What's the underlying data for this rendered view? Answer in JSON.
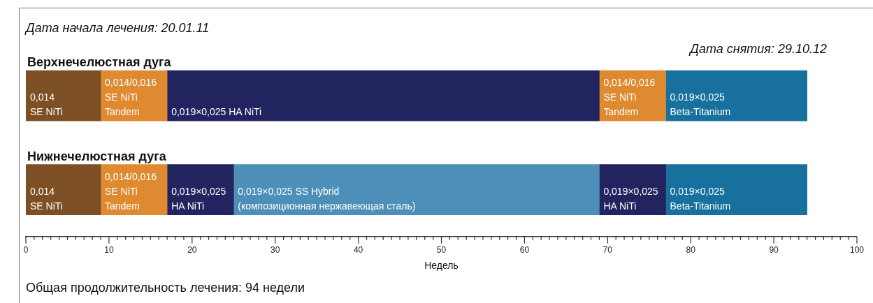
{
  "chart_data": {
    "type": "bar",
    "orientation": "horizontal",
    "xlabel": "Недель",
    "categories": [
      "Верхнечелюстная дуга",
      "Нижнечелюстная дуга"
    ],
    "annotations": [
      "Дата начала лечения:  20.01.11",
      "Дата снятия:  29.10.12",
      "Общая продолжительность лечения: 94 недели"
    ],
    "xlim": [
      0,
      100
    ],
    "xticks": [
      0,
      {
        "value": 1,
        "label": null
      },
      {
        "value": 2,
        "label": null
      },
      {
        "value": 3,
        "label": null
      },
      {
        "value": 4,
        "label": null
      },
      {
        "value": 5,
        "label": null
      },
      {
        "value": 6,
        "label": null
      },
      {
        "value": 7,
        "label": null
      },
      {
        "value": 8,
        "label": null
      },
      {
        "value": 9,
        "label": null
      },
      10,
      {
        "value": 11,
        "label": null
      },
      {
        "value": 12,
        "label": null
      },
      {
        "value": 13,
        "label": null
      },
      {
        "value": 14,
        "label": null
      },
      {
        "value": 15,
        "label": null
      },
      {
        "value": 16,
        "label": null
      },
      {
        "value": 17,
        "label": null
      },
      {
        "value": 18,
        "label": null
      },
      {
        "value": 19,
        "label": null
      },
      20,
      {
        "value": 21,
        "label": null
      },
      {
        "value": 22,
        "label": null
      },
      {
        "value": 23,
        "label": null
      },
      {
        "value": 24,
        "label": null
      },
      {
        "value": 25,
        "label": null
      },
      {
        "value": 26,
        "label": null
      },
      {
        "value": 27,
        "label": null
      },
      {
        "value": 28,
        "label": null
      },
      {
        "value": 29,
        "label": null
      },
      30,
      {
        "value": 31,
        "label": null
      },
      {
        "value": 32,
        "label": null
      },
      {
        "value": 33,
        "label": null
      },
      {
        "value": 34,
        "label": null
      },
      {
        "value": 35,
        "label": null
      },
      {
        "value": 36,
        "label": null
      },
      {
        "value": 37,
        "label": null
      },
      {
        "value": 38,
        "label": null
      },
      {
        "value": 39,
        "label": null
      },
      40,
      {
        "value": 41,
        "label": null
      },
      {
        "value": 42,
        "label": null
      },
      {
        "value": 43,
        "label": null
      },
      {
        "value": 44,
        "label": null
      },
      {
        "value": 45,
        "label": null
      },
      {
        "value": 46,
        "label": null
      },
      {
        "value": 47,
        "label": null
      },
      {
        "value": 48,
        "label": null
      },
      {
        "value": 49,
        "label": null
      },
      50,
      {
        "value": 51,
        "label": null
      },
      {
        "value": 52,
        "label": null
      },
      {
        "value": 53,
        "label": null
      },
      {
        "value": 54,
        "label": null
      },
      {
        "value": 55,
        "label": null
      },
      {
        "value": 56,
        "label": null
      },
      {
        "value": 57,
        "label": null
      },
      {
        "value": 58,
        "label": null
      },
      {
        "value": 59,
        "label": null
      },
      60,
      {
        "value": 61,
        "label": null
      },
      {
        "value": 62,
        "label": null
      },
      {
        "value": 63,
        "label": null
      },
      {
        "value": 64,
        "label": null
      },
      {
        "value": 65,
        "label": null
      },
      {
        "value": 66,
        "label": null
      },
      {
        "value": 67,
        "label": null
      },
      {
        "value": 68,
        "label": null
      },
      {
        "value": 69,
        "label": null
      },
      70,
      {
        "value": 71,
        "label": null
      },
      {
        "value": 72,
        "label": null
      },
      {
        "value": 73,
        "label": null
      },
      {
        "value": 74,
        "label": null
      },
      {
        "value": 75,
        "label": null
      },
      {
        "value": 76,
        "label": null
      },
      {
        "value": 77,
        "label": null
      },
      {
        "value": 78,
        "label": null
      },
      {
        "value": 79,
        "label": null
      },
      80,
      {
        "value": 81,
        "label": null
      },
      {
        "value": 82,
        "label": null
      },
      {
        "value": 83,
        "label": null
      },
      {
        "value": 84,
        "label": null
      },
      {
        "value": 85,
        "label": null
      },
      {
        "value": 86,
        "label": null
      },
      {
        "value": 87,
        "label": null
      },
      {
        "value": 88,
        "label": null
      },
      {
        "value": 89,
        "label": null
      },
      90,
      {
        "value": 91,
        "label": null
      },
      {
        "value": 92,
        "label": null
      },
      {
        "value": 93,
        "label": null
      },
      {
        "value": 94,
        "label": null
      },
      {
        "value": 95,
        "label": null
      },
      {
        "value": 96,
        "label": null
      },
      {
        "value": 97,
        "label": null
      },
      {
        "value": 98,
        "label": null
      },
      {
        "value": 99,
        "label": null
      },
      100
    ],
    "series": [
      {
        "name": "0,014\nSE NiTi",
        "color": "#7d4f25",
        "values": [
          9,
          null
        ],
        "base": [
          0,
          null
        ]
      },
      {
        "name": "0,014/0,016\nSE NiTi\nTandem",
        "color": "#df8a30",
        "values": [
          8,
          null
        ],
        "base": [
          9,
          null
        ]
      },
      {
        "name": "0,019×0,025 HA NiTi",
        "color": "#222460",
        "values": [
          52,
          null
        ],
        "base": [
          17,
          null
        ]
      },
      {
        "name": "0,014/0,016\nSE NiTi\nTandem",
        "color": "#df8a30",
        "values": [
          8,
          null
        ],
        "base": [
          69,
          null
        ]
      },
      {
        "name": "0,019×0,025\nBeta-Titanium",
        "color": "#17709e",
        "values": [
          17,
          null
        ],
        "base": [
          77,
          null
        ]
      },
      {
        "name": "0,014\nSE NiTi",
        "color": "#7d4f25",
        "values": [
          null,
          9
        ],
        "base": [
          null,
          0
        ]
      },
      {
        "name": "0,014/0,016\nSE NiTi\nTandem",
        "color": "#df8a30",
        "values": [
          null,
          8
        ],
        "base": [
          null,
          9
        ]
      },
      {
        "name": "0,019×0,025\nHA NiTi",
        "color": "#222460",
        "values": [
          null,
          8
        ],
        "base": [
          null,
          17
        ]
      },
      {
        "name": "0,019×0,025 SS Hybrid\n(композиционная нержавеющая сталь)",
        "color": "#4d8fb8",
        "values": [
          null,
          44
        ],
        "base": [
          null,
          25
        ]
      },
      {
        "name": "0,019×0,025\nHA NiTi",
        "color": "#222460",
        "values": [
          null,
          8
        ],
        "base": [
          null,
          69
        ]
      },
      {
        "name": "0,019×0,025\nBeta-Titanium",
        "color": "#17709e",
        "values": [
          null,
          17
        ],
        "base": [
          null,
          77
        ]
      }
    ]
  }
}
